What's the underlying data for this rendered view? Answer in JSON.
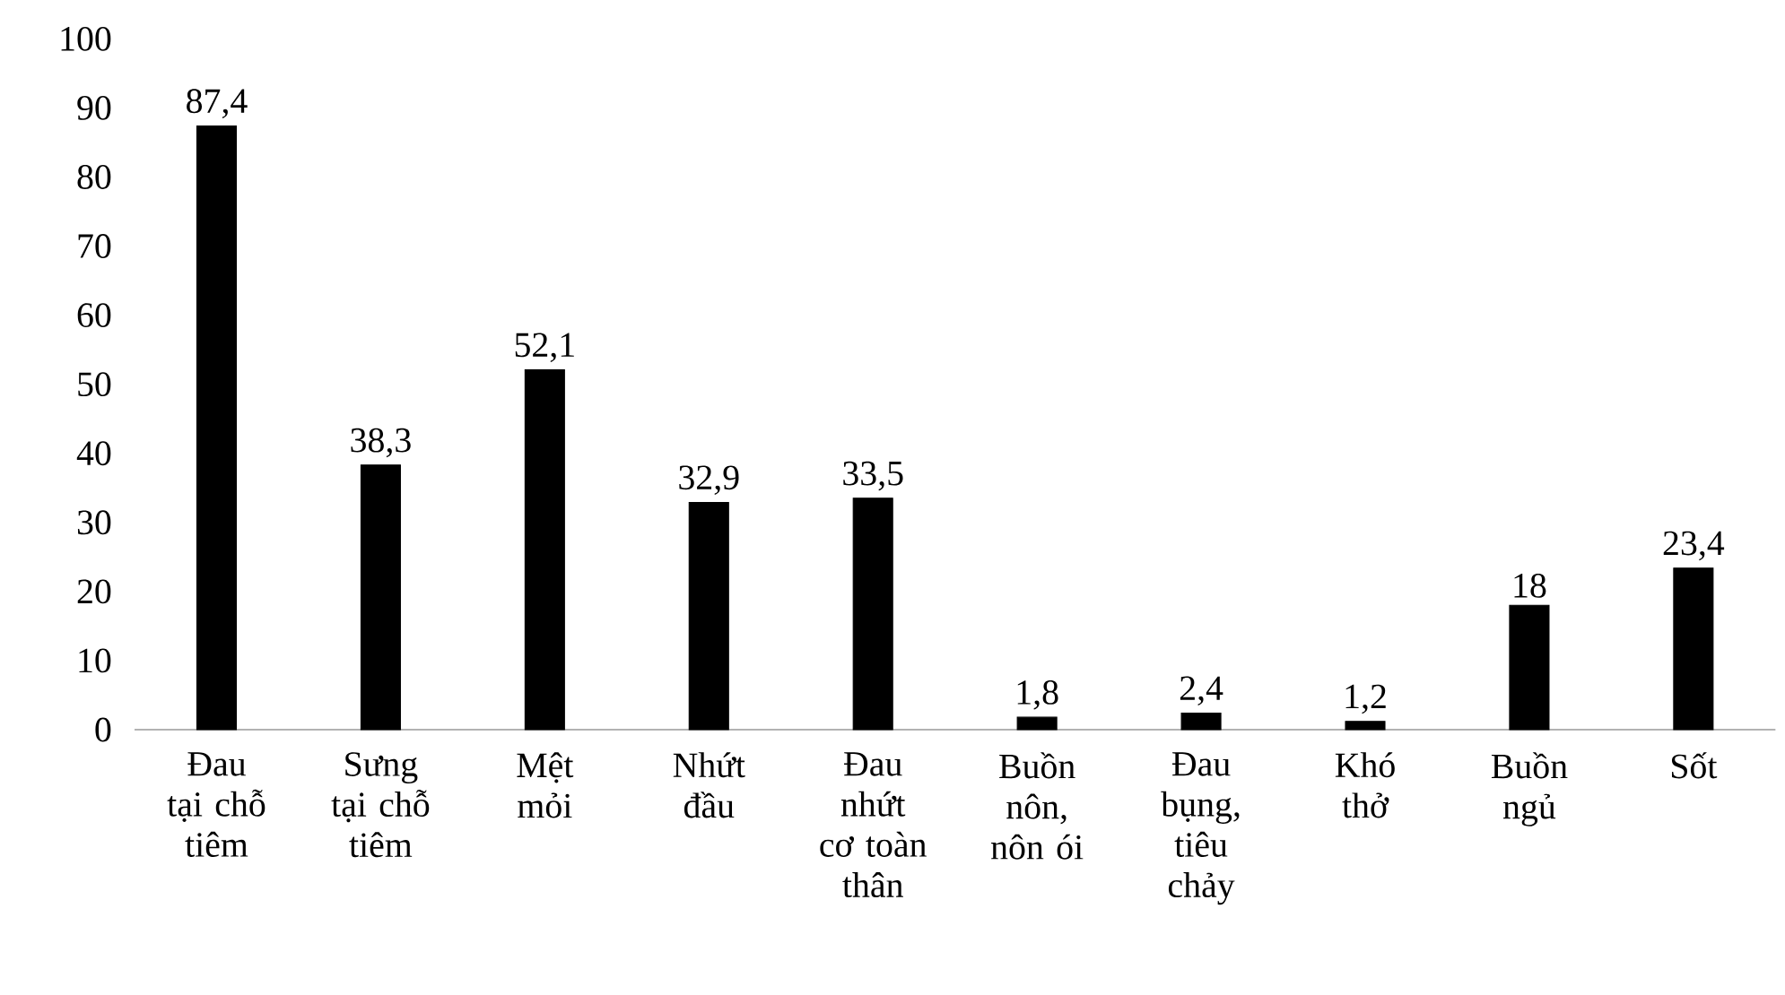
{
  "chart_data": {
    "type": "bar",
    "categories": [
      "Đau tại chỗ tiêm",
      "Sưng tại chỗ tiêm",
      "Mệt mỏi",
      "Nhứt đầu",
      "Đau nhứt cơ toàn thân",
      "Buồn nôn, nôn ói",
      "Đau bụng, tiêu chảy",
      "Khó thở",
      "Buồn ngủ",
      "Sốt"
    ],
    "values": [
      87.4,
      38.3,
      52.1,
      32.9,
      33.5,
      1.8,
      2.4,
      1.2,
      18,
      23.4
    ],
    "value_labels": [
      "87,4",
      "38,3",
      "52,1",
      "32,9",
      "33,5",
      "1,8",
      "2,4",
      "1,2",
      "18",
      "23,4"
    ],
    "color": "#000000",
    "ylim": [
      0,
      100
    ],
    "yticks": [
      0,
      10,
      20,
      30,
      40,
      50,
      60,
      70,
      80,
      90,
      100
    ],
    "grid": false
  }
}
